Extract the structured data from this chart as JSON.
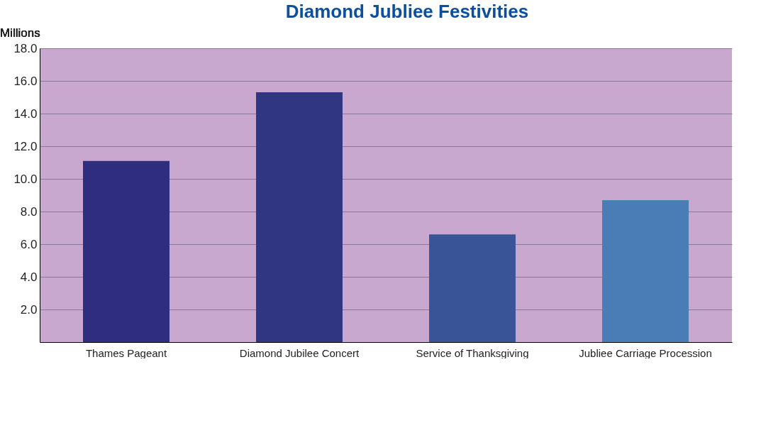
{
  "chart_data": {
    "type": "bar",
    "title": "Diamond Jubliee Festivities",
    "ylabel": "Millions",
    "categories": [
      "Thames Pageant",
      "Diamond Jubilee Concert",
      "Service of Thanksgiving",
      "Jubliee Carriage Procession"
    ],
    "values": [
      11.1,
      15.3,
      6.6,
      8.7
    ],
    "colors": [
      "#2e2d7f",
      "#303681",
      "#3a5597",
      "#4a7db5"
    ],
    "ylim": [
      0,
      18
    ],
    "yticks": [
      {
        "value": 2,
        "label": "2.0"
      },
      {
        "value": 4,
        "label": "4.0"
      },
      {
        "value": 6,
        "label": "6.0"
      },
      {
        "value": 8,
        "label": "8.0"
      },
      {
        "value": 10,
        "label": "10.0"
      },
      {
        "value": 12,
        "label": "12.0"
      },
      {
        "value": 14,
        "label": "14.0"
      },
      {
        "value": 16,
        "label": "16.0"
      },
      {
        "value": 18,
        "label": "18.0"
      }
    ],
    "grid": "y"
  }
}
